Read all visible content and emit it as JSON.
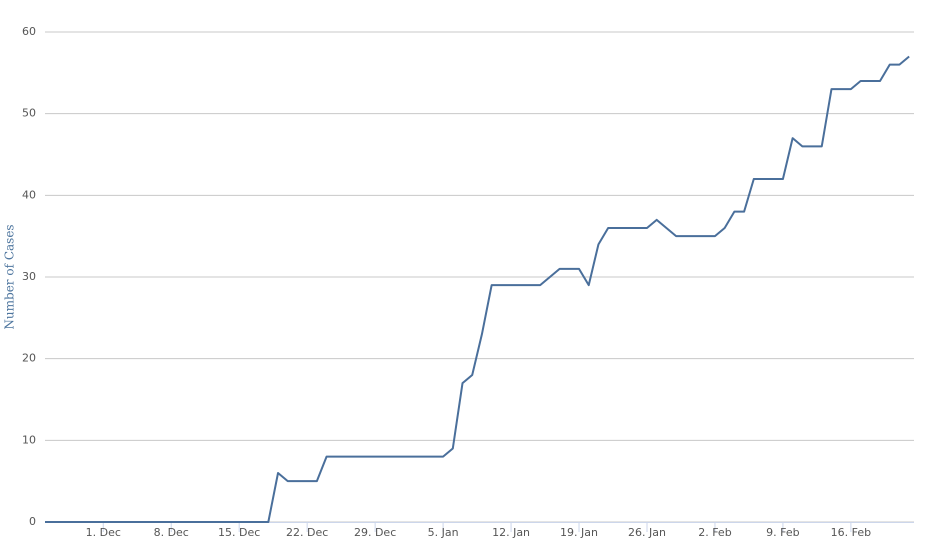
{
  "chart_data": {
    "type": "line",
    "y_label": "Number of Cases",
    "x": [
      0,
      1,
      2,
      3,
      4,
      5,
      6,
      7,
      8,
      9,
      10,
      11,
      12,
      13,
      14,
      15,
      16,
      17,
      18,
      19,
      20,
      21,
      22,
      23,
      24,
      25,
      26,
      27,
      28,
      29,
      30,
      31,
      32,
      33,
      34,
      35,
      36,
      37,
      38,
      39,
      40,
      41,
      42,
      43,
      44,
      45,
      46,
      47,
      48,
      49,
      50,
      51,
      52,
      53,
      54,
      55,
      56,
      57,
      58,
      59,
      60,
      61,
      62,
      63,
      64,
      65,
      66,
      67,
      68,
      69,
      70,
      71,
      72,
      73,
      74,
      75,
      76,
      77,
      78,
      79,
      80,
      81,
      82,
      83,
      84,
      85,
      86,
      87,
      88,
      89
    ],
    "series": [
      {
        "color": "#4a6f9b",
        "values": [
          0,
          0,
          0,
          0,
          0,
          0,
          0,
          0,
          0,
          0,
          0,
          0,
          0,
          0,
          0,
          0,
          0,
          0,
          0,
          0,
          0,
          0,
          0,
          0,
          6,
          5,
          5,
          5,
          5,
          8,
          8,
          8,
          8,
          8,
          8,
          8,
          8,
          8,
          8,
          8,
          8,
          8,
          9,
          17,
          18,
          23,
          29,
          29,
          29,
          29,
          29,
          29,
          30,
          31,
          31,
          31,
          29,
          34,
          36,
          36,
          36,
          36,
          36,
          37,
          36,
          35,
          35,
          35,
          35,
          35,
          36,
          38,
          38,
          42,
          42,
          42,
          42,
          47,
          46,
          46,
          46,
          53,
          53,
          53,
          54,
          54,
          54,
          56,
          56,
          57
        ]
      }
    ],
    "xlim": [
      0,
      89.5
    ],
    "xticks": [
      {
        "value": 6,
        "label": "1. Dec"
      },
      {
        "value": 13,
        "label": "8. Dec"
      },
      {
        "value": 20,
        "label": "15. Dec"
      },
      {
        "value": 27,
        "label": "22. Dec"
      },
      {
        "value": 34,
        "label": "29. Dec"
      },
      {
        "value": 41,
        "label": "5. Jan"
      },
      {
        "value": 48,
        "label": "12. Jan"
      },
      {
        "value": 55,
        "label": "19. Jan"
      },
      {
        "value": 62,
        "label": "26. Jan"
      },
      {
        "value": 69,
        "label": "2. Feb"
      },
      {
        "value": 76,
        "label": "9. Feb"
      },
      {
        "value": 83,
        "label": "16. Feb"
      }
    ],
    "ylim": [
      0,
      60
    ],
    "yticks": [
      0,
      10,
      20,
      30,
      40,
      50,
      60
    ],
    "grid": true
  }
}
